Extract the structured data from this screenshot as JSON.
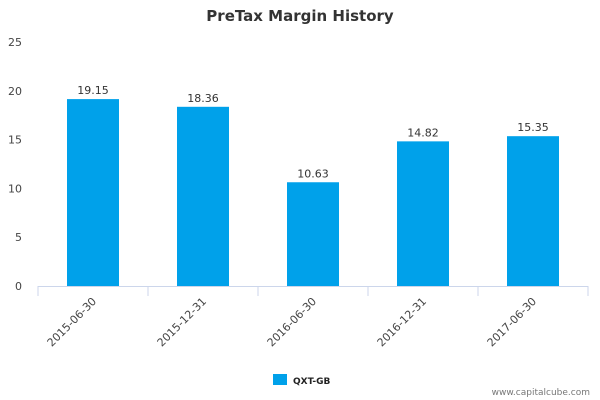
{
  "chart_data": {
    "type": "bar",
    "title": "PreTax Margin History",
    "categories": [
      "2015-06-30",
      "2015-12-31",
      "2016-06-30",
      "2016-12-31",
      "2017-06-30"
    ],
    "series": [
      {
        "name": "QXT-GB",
        "values": [
          19.15,
          18.36,
          10.63,
          14.82,
          15.35
        ],
        "color": "#00a1ea"
      }
    ],
    "data_labels": [
      "19.15",
      "18.36",
      "10.63",
      "14.82",
      "15.35"
    ],
    "y_ticks": [
      "0",
      "5",
      "10",
      "15",
      "20",
      "25"
    ],
    "ylim": [
      0,
      25
    ],
    "grid": false,
    "legend_position": "bottom-center"
  },
  "footer": {
    "source": "www.capitalcube.com"
  },
  "colors": {
    "bar": "#00a1ea",
    "axis": "#ccd6eb",
    "text": "#333333"
  }
}
